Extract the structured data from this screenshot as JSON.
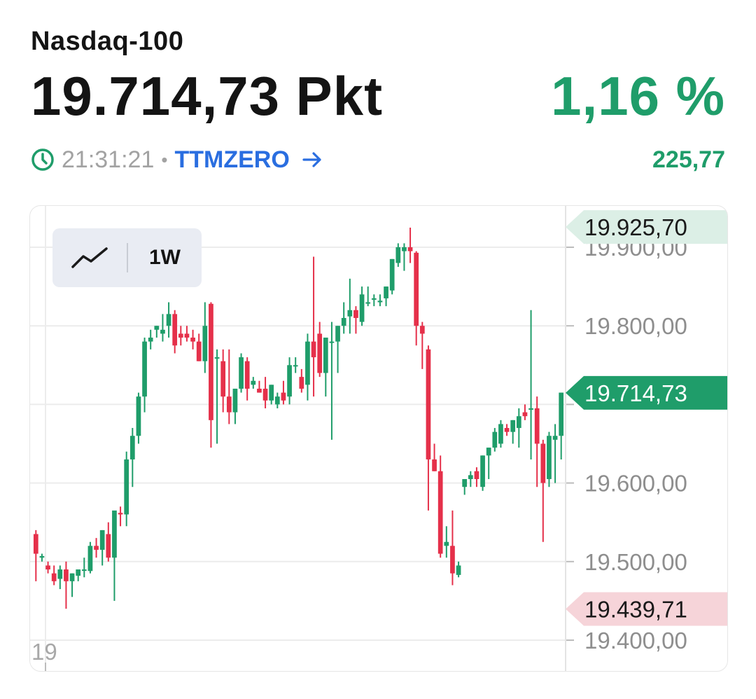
{
  "header": {
    "index_name": "Nasdaq-100",
    "price": "19.714,73 Pkt",
    "change_percent": "1,16 %",
    "time": "21:31:21",
    "separator": "•",
    "source": "TTMZERO",
    "change_points": "225,77"
  },
  "icons": {
    "clock": "clock-icon",
    "arrow": "arrow-right-icon",
    "chart_type": "line-chart-icon"
  },
  "colors": {
    "up": "#1f9d6a",
    "down": "#e5304a",
    "link": "#2a6ee0",
    "high_tag_bg": "#dcefe6",
    "low_tag_bg": "#f6d4d9",
    "current_tag_bg": "#1f9d6a"
  },
  "toolbar": {
    "range": "1W"
  },
  "chart_data": {
    "type": "candlestick",
    "y_ticks": [
      "19.900,00",
      "19.800,00",
      "19.600,00",
      "19.500,00",
      "19.400,00"
    ],
    "y_tick_values": [
      19900,
      19800,
      19600,
      19500,
      19400
    ],
    "ylim": [
      19380,
      19945
    ],
    "x_labels": [
      "19"
    ],
    "grid": true,
    "current_value_label": "19.714,73",
    "current_value": 19714.73,
    "period_high_label": "19.925,70",
    "period_high": 19925.7,
    "period_low_label": "19.439,71",
    "period_low": 19439.71,
    "candles": [
      [
        19535,
        19540,
        19475,
        19510
      ],
      [
        19505,
        19510,
        19500,
        19507
      ],
      [
        19495,
        19500,
        19485,
        19490
      ],
      [
        19485,
        19495,
        19470,
        19475
      ],
      [
        19478,
        19495,
        19465,
        19490
      ],
      [
        19490,
        19500,
        19440,
        19475
      ],
      [
        19475,
        19485,
        19455,
        19485
      ],
      [
        19482,
        19490,
        19475,
        19490
      ],
      [
        19490,
        19505,
        19480,
        19490
      ],
      [
        19488,
        19525,
        19485,
        19520
      ],
      [
        19520,
        19530,
        19505,
        19515
      ],
      [
        19515,
        19540,
        19495,
        19540
      ],
      [
        19535,
        19550,
        19500,
        19505
      ],
      [
        19505,
        19560,
        19450,
        19565
      ],
      [
        19562,
        19570,
        19545,
        19560
      ],
      [
        19560,
        19640,
        19545,
        19630
      ],
      [
        19630,
        19670,
        19595,
        19660
      ],
      [
        19660,
        19715,
        19650,
        19710
      ],
      [
        19710,
        19785,
        19690,
        19780
      ],
      [
        19780,
        19795,
        19770,
        19785
      ],
      [
        19795,
        19800,
        19785,
        19800
      ],
      [
        19790,
        19815,
        19780,
        19795
      ],
      [
        19800,
        19830,
        19785,
        19815
      ],
      [
        19815,
        19820,
        19765,
        19775
      ],
      [
        19790,
        19800,
        19775,
        19785
      ],
      [
        19790,
        19800,
        19780,
        19785
      ],
      [
        19785,
        19795,
        19770,
        19780
      ],
      [
        19780,
        19790,
        19755,
        19755
      ],
      [
        19755,
        19830,
        19740,
        19800
      ],
      [
        19828,
        19830,
        19645,
        19680
      ],
      [
        19760,
        19770,
        19650,
        19760
      ],
      [
        19755,
        19770,
        19690,
        19710
      ],
      [
        19710,
        19770,
        19675,
        19690
      ],
      [
        19690,
        19720,
        19675,
        19720
      ],
      [
        19720,
        19765,
        19715,
        19760
      ],
      [
        19755,
        19760,
        19705,
        19720
      ],
      [
        19725,
        19735,
        19720,
        19730
      ],
      [
        19720,
        19730,
        19715,
        19715
      ],
      [
        19720,
        19735,
        19695,
        19705
      ],
      [
        19705,
        19725,
        19700,
        19725
      ],
      [
        19700,
        19715,
        19695,
        19710
      ],
      [
        19715,
        19730,
        19700,
        19705
      ],
      [
        19710,
        19760,
        19700,
        19750
      ],
      [
        19750,
        19760,
        19740,
        19750
      ],
      [
        19735,
        19745,
        19715,
        19720
      ],
      [
        19725,
        19790,
        19705,
        19780
      ],
      [
        19780,
        19888,
        19710,
        19760
      ],
      [
        19790,
        19805,
        19735,
        19740
      ],
      [
        19740,
        19785,
        19710,
        19785
      ],
      [
        19780,
        19805,
        19655,
        19780
      ],
      [
        19780,
        19800,
        19740,
        19800
      ],
      [
        19800,
        19830,
        19790,
        19810
      ],
      [
        19812,
        19860,
        19790,
        19820
      ],
      [
        19820,
        19825,
        19790,
        19810
      ],
      [
        19805,
        19850,
        19800,
        19840
      ],
      [
        19830,
        19850,
        19825,
        19830
      ],
      [
        19835,
        19840,
        19825,
        19835
      ],
      [
        19830,
        19840,
        19825,
        19832
      ],
      [
        19835,
        19850,
        19825,
        19850
      ],
      [
        19845,
        19885,
        19840,
        19885
      ],
      [
        19880,
        19905,
        19875,
        19900
      ],
      [
        19895,
        19905,
        19870,
        19900
      ],
      [
        19900,
        19925,
        19880,
        19895
      ],
      [
        19893,
        19895,
        19775,
        19800
      ],
      [
        19800,
        19805,
        19745,
        19790
      ],
      [
        19770,
        19775,
        19565,
        19630
      ],
      [
        19630,
        19650,
        19615,
        19615
      ],
      [
        19615,
        19635,
        19505,
        19510
      ],
      [
        19520,
        19545,
        19505,
        19525
      ],
      [
        19520,
        19565,
        19470,
        19485
      ],
      [
        19483,
        19500,
        19480,
        19495
      ],
      [
        19595,
        19605,
        19585,
        19605
      ],
      [
        19605,
        19615,
        19595,
        19610
      ],
      [
        19615,
        19620,
        19595,
        19605
      ],
      [
        19595,
        19635,
        19590,
        19635
      ],
      [
        19635,
        19645,
        19605,
        19645
      ],
      [
        19645,
        19670,
        19640,
        19665
      ],
      [
        19650,
        19680,
        19645,
        19675
      ],
      [
        19670,
        19675,
        19660,
        19665
      ],
      [
        19665,
        19680,
        19650,
        19680
      ],
      [
        19670,
        19695,
        19645,
        19685
      ],
      [
        19690,
        19700,
        19680,
        19685
      ],
      [
        19695,
        19820,
        19630,
        19695
      ],
      [
        19695,
        19710,
        19595,
        19650
      ],
      [
        19650,
        19655,
        19525,
        19600
      ],
      [
        19605,
        19665,
        19595,
        19660
      ],
      [
        19655,
        19675,
        19600,
        19660
      ],
      [
        19660,
        19715,
        19630,
        19715
      ]
    ]
  }
}
